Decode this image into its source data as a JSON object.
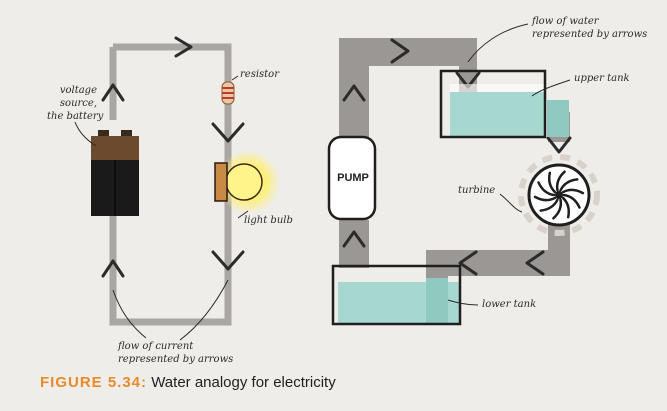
{
  "electric_circuit": {
    "voltage_source_label": [
      "voltage",
      "source,",
      "the battery"
    ],
    "resistor_label": "resistor",
    "light_bulb_label": "light bulb",
    "current_label": [
      "flow of current",
      "represented by arrows"
    ]
  },
  "water_circuit": {
    "pump_label": "PUMP",
    "water_flow_label": [
      "flow of water",
      "represented by arrows"
    ],
    "upper_tank_label": "upper tank",
    "turbine_label": "turbine",
    "lower_tank_label": "lower tank"
  },
  "caption": {
    "figure_number": "FIGURE 5.34:",
    "text": "Water analogy for electricity"
  },
  "colors": {
    "wire": "#a9a6a3",
    "pipe": "#9b9794",
    "water": "#a6d8d0",
    "battery_top": "#6b4a2e",
    "battery_body": "#1a1a1a",
    "bulb_glow": "#fff06a",
    "caption_accent": "#e88a2a"
  }
}
